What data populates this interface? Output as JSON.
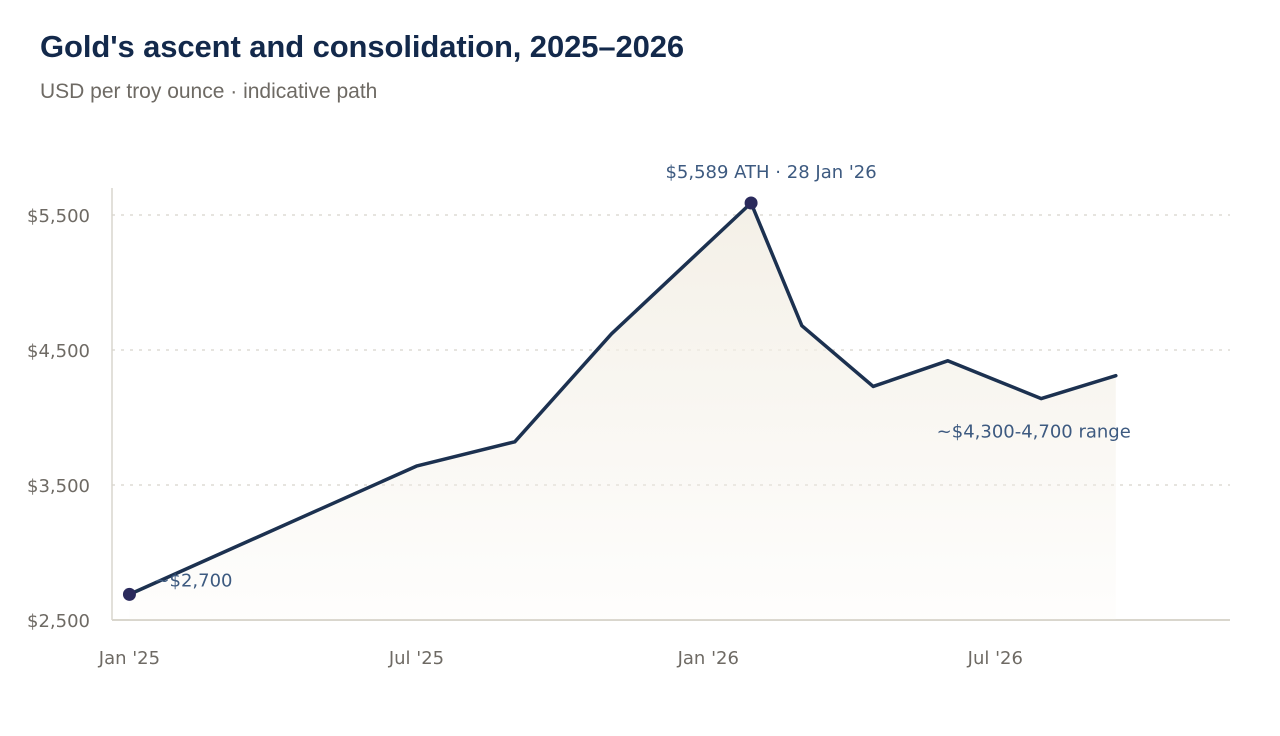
{
  "chart_data": {
    "type": "line",
    "title": "Gold's ascent and consolidation, 2025–2026",
    "subtitle": "USD per troy ounce · indicative path",
    "xlabel": "",
    "ylabel": "",
    "x": [
      "2025-01-01",
      "2025-03-01",
      "2025-05-01",
      "2025-07-01",
      "2025-09-01",
      "2025-11-01",
      "2026-01-28",
      "2026-03-01",
      "2026-04-15",
      "2026-06-01",
      "2026-07-30",
      "2026-09-15"
    ],
    "series": [
      {
        "name": "",
        "values": [
          2690,
          3000,
          3320,
          3640,
          3820,
          4620,
          5589,
          4680,
          4230,
          4420,
          4140,
          4310
        ],
        "color": "#1c3150"
      }
    ],
    "ylim": [
      2500,
      5700
    ],
    "y_ticks": [
      2500,
      3500,
      4500,
      5500
    ],
    "y_tick_labels": [
      "$2,500",
      "$3,500",
      "$4,500",
      "$5,500"
    ],
    "x_ticks": [
      "2025-01-01",
      "2025-07-01",
      "2026-01-01",
      "2026-07-01"
    ],
    "x_tick_labels": [
      "Jan '25",
      "Jul '25",
      "Jan '26",
      "Jul '26"
    ],
    "grid": "horizontal dashed",
    "annotations": [
      {
        "text": "~$2,700",
        "x": "2025-01-01",
        "y": 2690
      },
      {
        "text": "$5,589 ATH · 28 Jan '26",
        "x": "2026-01-28",
        "y": 5589
      },
      {
        "text": "~$4,300-4,700 range",
        "x": "2026-09-15",
        "y": 4310
      }
    ],
    "colors": {
      "line": "#1c3150",
      "marker": "#2a2a5c",
      "area": "#f4f0e7",
      "grid": "#d6d3cc",
      "axis": "#d9d6cd",
      "annotation": "#3d5a80",
      "title": "#13294b",
      "muted": "#6e6a64"
    }
  }
}
